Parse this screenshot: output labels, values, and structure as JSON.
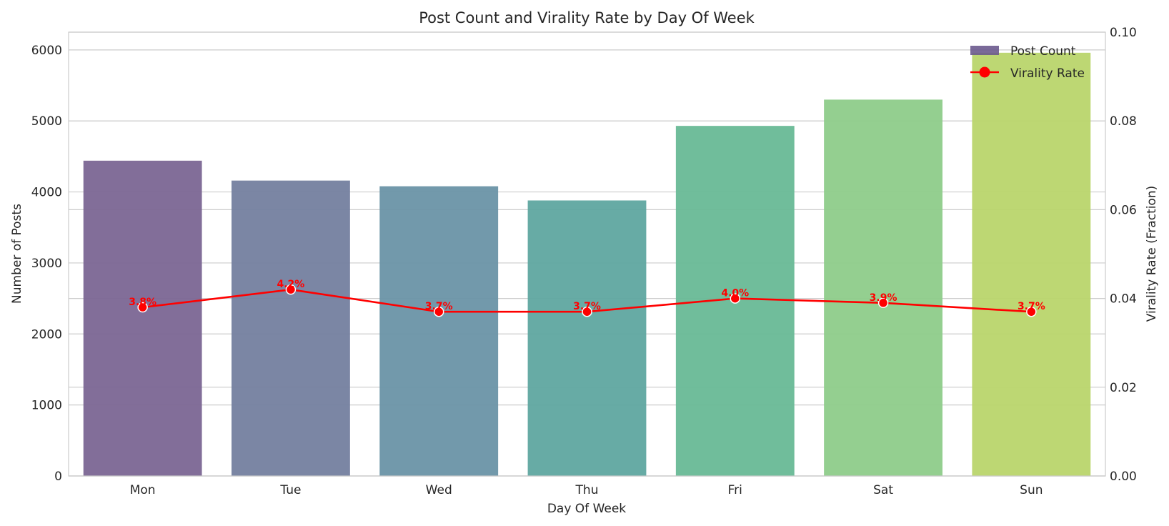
{
  "chart_data": {
    "type": "bar",
    "title": "Post Count and Virality Rate by Day Of Week",
    "xlabel": "Day Of Week",
    "ylabel": "Number of Posts",
    "ylabel_right": "Virality Rate (Fraction)",
    "categories": [
      "Mon",
      "Tue",
      "Wed",
      "Thu",
      "Fri",
      "Sat",
      "Sun"
    ],
    "ylim": [
      0,
      6250
    ],
    "ylim_right": [
      0,
      0.1
    ],
    "yticks": [
      "0",
      "1000",
      "2000",
      "3000",
      "4000",
      "5000",
      "6000"
    ],
    "yticks_right": [
      "0.00",
      "0.02",
      "0.04",
      "0.06",
      "0.08",
      "0.10"
    ],
    "grid": true,
    "legend_position": "top-right",
    "series": [
      {
        "name": "Post Count",
        "type": "bar",
        "axis": "left",
        "values": [
          4440,
          4160,
          4080,
          3880,
          4930,
          5300,
          5960
        ],
        "colors": [
          "#7b6694",
          "#74809f",
          "#6a93a6",
          "#5fa6a0",
          "#68b996",
          "#8ecc8a",
          "#b9d56c"
        ]
      },
      {
        "name": "Virality Rate",
        "type": "line",
        "axis": "right",
        "color": "#ff0000",
        "values": [
          0.038,
          0.042,
          0.037,
          0.037,
          0.04,
          0.039,
          0.037
        ],
        "labels": [
          "3.8%",
          "4.2%",
          "3.7%",
          "3.7%",
          "4.0%",
          "3.9%",
          "3.7%"
        ]
      }
    ]
  }
}
